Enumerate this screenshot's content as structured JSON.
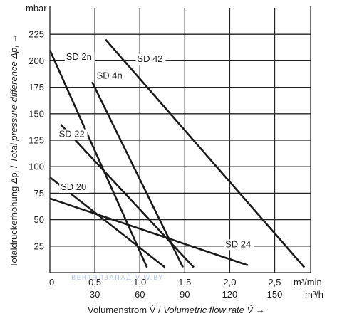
{
  "chart_data": {
    "type": "line",
    "yunit": "mbar",
    "ylabel_prefix": "Totaldruckerhöhung Δp",
    "ylabel_sub": "t",
    "ylabel_sep": " / ",
    "ylabel_italic": "Total pressure difference Δp",
    "ylabel_italic_sub": "t",
    "ylabel_arrow": "→",
    "xlabel_prefix": "Volumenstrom V̇ / ",
    "xlabel_italic": "Volumetric flow rate V̇",
    "xlabel_arrow": " →",
    "x_unit_top": "m³/min",
    "x_unit_bottom": "m³/h",
    "xlim": [
      0,
      2.9
    ],
    "ylim": [
      0,
      250
    ],
    "grid": true,
    "y_ticks": [
      {
        "value": 25,
        "label": "25"
      },
      {
        "value": 50,
        "label": "50"
      },
      {
        "value": 75,
        "label": "75"
      },
      {
        "value": 100,
        "label": "100"
      },
      {
        "value": 125,
        "label": "125"
      },
      {
        "value": 150,
        "label": "150"
      },
      {
        "value": 175,
        "label": "175"
      },
      {
        "value": 200,
        "label": "200"
      },
      {
        "value": 225,
        "label": "225"
      }
    ],
    "x_ticks_top": [
      {
        "value": 0,
        "label": "0"
      },
      {
        "value": 0.5,
        "label": "0,5"
      },
      {
        "value": 1.0,
        "label": "1,0"
      },
      {
        "value": 1.5,
        "label": "1,5"
      },
      {
        "value": 2.0,
        "label": "2,0"
      },
      {
        "value": 2.5,
        "label": "2,5"
      }
    ],
    "x_ticks_bottom": [
      {
        "value": 0.5,
        "label": "30"
      },
      {
        "value": 1.0,
        "label": "60"
      },
      {
        "value": 1.5,
        "label": "90"
      },
      {
        "value": 2.0,
        "label": "120"
      },
      {
        "value": 2.5,
        "label": "150"
      }
    ],
    "series": [
      {
        "name": "SD 2n",
        "x": [
          0,
          1.08
        ],
        "y": [
          210,
          5
        ]
      },
      {
        "name": "SD 4n",
        "x": [
          0.47,
          1.48
        ],
        "y": [
          180,
          5
        ]
      },
      {
        "name": "SD 42",
        "x": [
          0.62,
          2.83
        ],
        "y": [
          220,
          5
        ]
      },
      {
        "name": "SD 22",
        "x": [
          0.12,
          1.6
        ],
        "y": [
          140,
          5
        ]
      },
      {
        "name": "SD 20",
        "x": [
          0,
          1.28
        ],
        "y": [
          90,
          5
        ]
      },
      {
        "name": "SD 24",
        "x": [
          0,
          2.2
        ],
        "y": [
          70,
          7
        ]
      }
    ],
    "annotations": [
      {
        "text": "SD 2n",
        "x": 0.18,
        "y": 201
      },
      {
        "text": "SD 42",
        "x": 0.97,
        "y": 199
      },
      {
        "text": "SD 4n",
        "x": 0.52,
        "y": 183
      },
      {
        "text": "SD 22",
        "x": 0.1,
        "y": 128
      },
      {
        "text": "SD 20",
        "x": 0.12,
        "y": 78
      },
      {
        "text": "SD 24",
        "x": 1.95,
        "y": 24
      }
    ],
    "watermark": "ВЕНТЭЛЗАПАД   V-W.BY"
  }
}
